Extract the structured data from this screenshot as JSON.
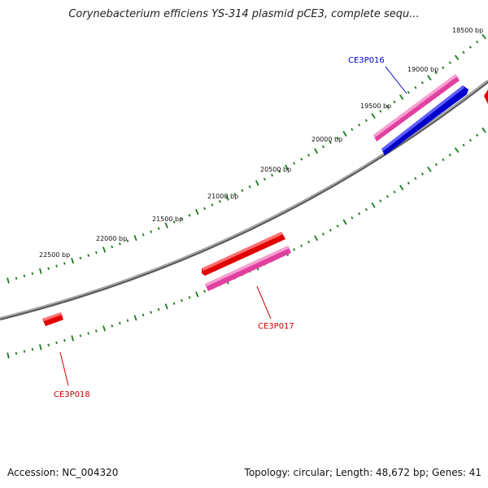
{
  "title": "Corynebacterium efficiens YS-314 plasmid pCE3, complete sequ...",
  "footer": {
    "accession": "Accession: NC_004320",
    "topology": "Topology: circular; Length: 48,672 bp; Genes: 41"
  },
  "colors": {
    "backbone": "#8a8a8a",
    "ticks": "#1a7a1a",
    "gene_red": "#e00000",
    "gene_pink": "#e040a0",
    "gene_blue": "#0000cc",
    "label_red": "#cc0000",
    "label_blue": "#0000cc"
  },
  "ruler": {
    "labels": [
      "18500 bp",
      "19000 bp",
      "19500 bp",
      "20000 bp",
      "20500 bp",
      "21000 bp",
      "21500 bp",
      "22000 bp",
      "22500 bp"
    ]
  },
  "genes": [
    {
      "name": "CE3P016",
      "label": "CE3P016",
      "color": "blue"
    },
    {
      "name": "CE3P017",
      "label": "CE3P017",
      "color": "red"
    },
    {
      "name": "CE3P018",
      "label": "CE3P018",
      "color": "red"
    }
  ]
}
